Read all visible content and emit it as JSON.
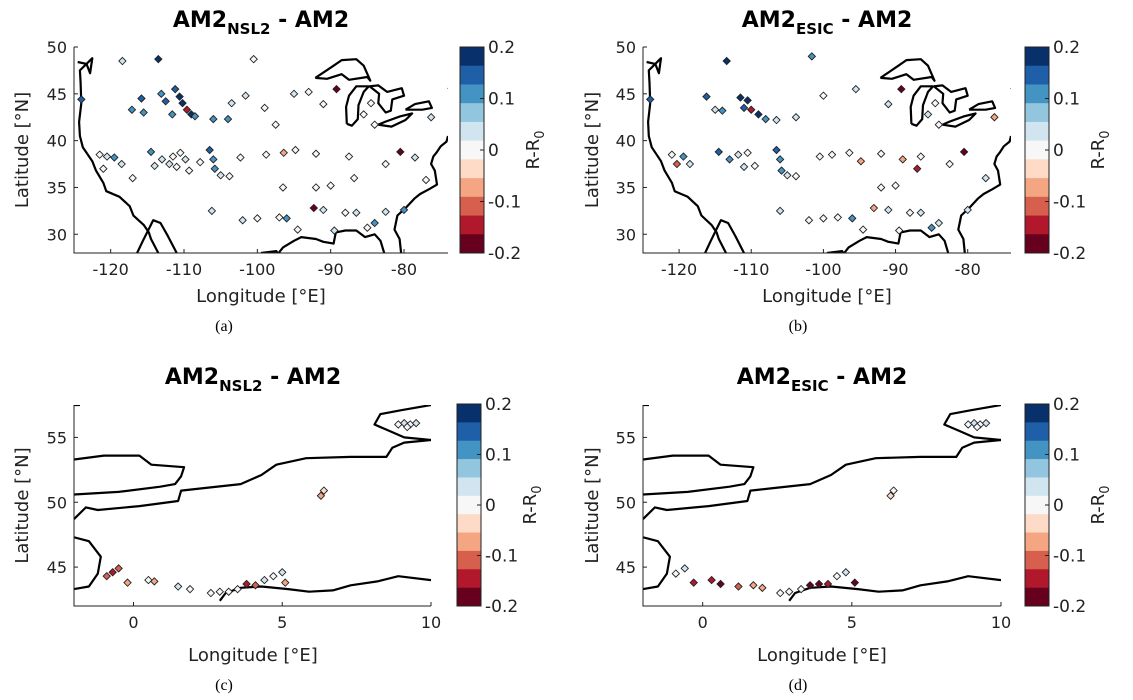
{
  "colorbar": {
    "label": "R-R",
    "label_sub": "0",
    "ticks": [
      "0.2",
      "0.1",
      "0",
      "-0.1",
      "-0.2"
    ],
    "tick_values": [
      0.2,
      0.1,
      0,
      -0.1,
      -0.2
    ],
    "range": [
      -0.2,
      0.2
    ],
    "bin_width": 0.025,
    "colors_top_to_bottom": [
      "#08306b",
      "#1e5fa8",
      "#4393c3",
      "#92c5de",
      "#d1e5f0",
      "#f7f7f7",
      "#fddbc7",
      "#f4a582",
      "#d6604d",
      "#b2182b",
      "#67001f"
    ]
  },
  "chart_data": [
    {
      "type": "scatter",
      "panel": "(a)",
      "title_main": "AM2",
      "title_sub": "NSL2",
      "title_rest": " - AM2",
      "xlabel": "Longitude [°E]",
      "ylabel": "Latitude [°N]",
      "xlim": [
        -125,
        -74
      ],
      "ylim": [
        28,
        50
      ],
      "xticks": [
        -120,
        -110,
        -100,
        -90,
        -80
      ],
      "xtick_labels": [
        "-120",
        "-110",
        "-100",
        "-90",
        "-80"
      ],
      "yticks": [
        30,
        35,
        40,
        45,
        50
      ],
      "ytick_labels": [
        "30",
        "35",
        "40",
        "45",
        "50"
      ],
      "points": [
        [
          -124.0,
          44.4,
          0.15
        ],
        [
          -118.4,
          48.5,
          0.02
        ],
        [
          -117.1,
          43.3,
          0.1
        ],
        [
          -115.8,
          44.5,
          0.15
        ],
        [
          -115.5,
          43.0,
          0.12
        ],
        [
          -113.5,
          48.7,
          0.18
        ],
        [
          -113.1,
          45.0,
          0.12
        ],
        [
          -112.5,
          44.2,
          0.15
        ],
        [
          -111.6,
          42.8,
          0.12
        ],
        [
          -111.2,
          45.5,
          0.16
        ],
        [
          -110.6,
          44.7,
          0.18
        ],
        [
          -110.2,
          44.0,
          0.2
        ],
        [
          -109.6,
          43.3,
          -0.15
        ],
        [
          -109.0,
          42.8,
          0.18
        ],
        [
          -108.5,
          42.6,
          0.12
        ],
        [
          -106.0,
          42.3,
          0.1
        ],
        [
          -104.0,
          42.3,
          0.12
        ],
        [
          -103.5,
          44.0,
          0.02
        ],
        [
          -101.6,
          44.8,
          0.02
        ],
        [
          -100.5,
          48.7,
          0.01
        ],
        [
          -99.0,
          43.5,
          0.0
        ],
        [
          -97.5,
          41.7,
          0.01
        ],
        [
          -95.0,
          45.0,
          0.02
        ],
        [
          -93.0,
          45.2,
          0.0
        ],
        [
          -91.0,
          43.9,
          0.01
        ],
        [
          -89.2,
          45.5,
          -0.18
        ],
        [
          -84.5,
          44.0,
          0.0
        ],
        [
          -85.5,
          42.8,
          0.0
        ],
        [
          -84.0,
          41.7,
          0.01
        ],
        [
          -76.3,
          42.5,
          0.02
        ],
        [
          -121.5,
          38.5,
          0.01
        ],
        [
          -120.5,
          38.3,
          0.02
        ],
        [
          -119.5,
          38.2,
          0.12
        ],
        [
          -121.0,
          37.0,
          0.0
        ],
        [
          -118.5,
          37.5,
          0.02
        ],
        [
          -117.0,
          36.0,
          0.01
        ],
        [
          -114.5,
          38.8,
          0.12
        ],
        [
          -114.0,
          37.3,
          0.02
        ],
        [
          -113.0,
          38.0,
          0.02
        ],
        [
          -112.0,
          37.5,
          0.02
        ],
        [
          -111.5,
          38.3,
          0.0
        ],
        [
          -111.0,
          37.2,
          0.01
        ],
        [
          -110.5,
          38.7,
          0.0
        ],
        [
          -109.8,
          38.0,
          0.02
        ],
        [
          -109.3,
          36.8,
          0.01
        ],
        [
          -107.8,
          37.7,
          0.0
        ],
        [
          -106.5,
          39.0,
          0.15
        ],
        [
          -106.0,
          38.0,
          0.12
        ],
        [
          -105.8,
          37.0,
          0.12
        ],
        [
          -105.0,
          36.3,
          0.02
        ],
        [
          -106.2,
          32.5,
          0.05
        ],
        [
          -103.8,
          36.2,
          0.01
        ],
        [
          -102.3,
          38.2,
          0.0
        ],
        [
          -98.8,
          38.5,
          0.01
        ],
        [
          -96.4,
          38.7,
          -0.08
        ],
        [
          -94.8,
          39.0,
          0.01
        ],
        [
          -92.0,
          38.6,
          0.01
        ],
        [
          -87.5,
          38.3,
          0.0
        ],
        [
          -86.8,
          36.0,
          0.0
        ],
        [
          -82.5,
          37.5,
          0.0
        ],
        [
          -80.5,
          38.8,
          -0.18
        ],
        [
          -78.5,
          38.2,
          0.02
        ],
        [
          -77.0,
          35.8,
          0.0
        ],
        [
          -102.0,
          31.5,
          0.02
        ],
        [
          -100.0,
          31.7,
          0.01
        ],
        [
          -97.0,
          31.8,
          0.0
        ],
        [
          -96.0,
          31.7,
          0.1
        ],
        [
          -94.5,
          30.5,
          0.0
        ],
        [
          -92.3,
          32.8,
          -0.18
        ],
        [
          -91.0,
          32.6,
          0.02
        ],
        [
          -89.5,
          30.4,
          0.02
        ],
        [
          -88.0,
          32.3,
          0.01
        ],
        [
          -86.5,
          32.3,
          0.02
        ],
        [
          -85.0,
          30.7,
          0.01
        ],
        [
          -84.0,
          31.2,
          0.1
        ],
        [
          -82.5,
          32.4,
          0.02
        ],
        [
          -80.0,
          32.6,
          0.12
        ],
        [
          -92.0,
          35.0,
          0.0
        ],
        [
          -90.0,
          35.2,
          0.01
        ],
        [
          -96.5,
          35.0,
          0.01
        ]
      ]
    },
    {
      "type": "scatter",
      "panel": "(b)",
      "title_main": "AM2",
      "title_sub": "ESIC",
      "title_rest": " - AM2",
      "xlabel": "Longitude [°E]",
      "ylabel": "Latitude [°N]",
      "xlim": [
        -125,
        -74
      ],
      "ylim": [
        28,
        50
      ],
      "xticks": [
        -120,
        -110,
        -100,
        -90,
        -80
      ],
      "xtick_labels": [
        "-120",
        "-110",
        "-100",
        "-90",
        "-80"
      ],
      "yticks": [
        30,
        35,
        40,
        45,
        50
      ],
      "ytick_labels": [
        "30",
        "35",
        "40",
        "45",
        "50"
      ],
      "points": [
        [
          -124.0,
          44.4,
          0.15
        ],
        [
          -116.2,
          44.7,
          0.15
        ],
        [
          -113.4,
          48.5,
          0.2
        ],
        [
          -115.0,
          43.3,
          0.02
        ],
        [
          -114.0,
          43.2,
          0.1
        ],
        [
          -111.5,
          44.6,
          0.18
        ],
        [
          -111.0,
          43.5,
          0.15
        ],
        [
          -110.5,
          44.3,
          0.2
        ],
        [
          -110.0,
          43.3,
          -0.15
        ],
        [
          -109.0,
          42.8,
          0.18
        ],
        [
          -108.0,
          42.3,
          0.12
        ],
        [
          -106.5,
          42.2,
          0.02
        ],
        [
          -103.8,
          42.5,
          0.02
        ],
        [
          -101.6,
          49.0,
          0.12
        ],
        [
          -100.0,
          44.8,
          0.01
        ],
        [
          -95.5,
          45.5,
          0.02
        ],
        [
          -91.0,
          43.9,
          0.02
        ],
        [
          -89.2,
          45.5,
          -0.18
        ],
        [
          -84.5,
          44.0,
          0.0
        ],
        [
          -85.5,
          42.8,
          0.02
        ],
        [
          -84.0,
          41.7,
          0.01
        ],
        [
          -76.3,
          42.5,
          -0.08
        ],
        [
          -121.0,
          38.5,
          0.01
        ],
        [
          -120.3,
          37.5,
          -0.1
        ],
        [
          -119.4,
          38.3,
          0.12
        ],
        [
          -118.5,
          37.5,
          0.02
        ],
        [
          -114.5,
          38.8,
          0.15
        ],
        [
          -113.0,
          38.0,
          0.12
        ],
        [
          -111.8,
          38.5,
          0.02
        ],
        [
          -111.0,
          37.2,
          0.02
        ],
        [
          -110.5,
          38.7,
          0.0
        ],
        [
          -109.5,
          37.3,
          0.01
        ],
        [
          -106.5,
          39.0,
          0.15
        ],
        [
          -106.0,
          38.0,
          0.12
        ],
        [
          -105.8,
          36.8,
          0.12
        ],
        [
          -105.0,
          36.3,
          0.02
        ],
        [
          -103.8,
          36.2,
          0.01
        ],
        [
          -100.5,
          38.3,
          0.0
        ],
        [
          -98.8,
          38.5,
          0.01
        ],
        [
          -96.4,
          38.7,
          0.01
        ],
        [
          -94.8,
          37.8,
          -0.08
        ],
        [
          -92.0,
          38.6,
          0.01
        ],
        [
          -89.0,
          38.0,
          -0.08
        ],
        [
          -87.0,
          37.0,
          -0.15
        ],
        [
          -86.5,
          38.3,
          0.0
        ],
        [
          -82.5,
          37.5,
          0.0
        ],
        [
          -80.5,
          38.8,
          -0.18
        ],
        [
          -77.5,
          36.0,
          0.02
        ],
        [
          -106.0,
          32.5,
          0.02
        ],
        [
          -102.0,
          31.5,
          0.01
        ],
        [
          -100.0,
          31.7,
          0.01
        ],
        [
          -98.0,
          31.8,
          0.0
        ],
        [
          -96.0,
          31.7,
          0.1
        ],
        [
          -94.5,
          30.5,
          0.0
        ],
        [
          -93.0,
          32.8,
          -0.08
        ],
        [
          -91.0,
          32.6,
          0.02
        ],
        [
          -89.5,
          30.4,
          0.0
        ],
        [
          -88.0,
          32.3,
          0.01
        ],
        [
          -86.5,
          32.3,
          0.02
        ],
        [
          -85.0,
          30.7,
          0.12
        ],
        [
          -84.0,
          31.2,
          0.02
        ],
        [
          -80.0,
          32.6,
          0.02
        ],
        [
          -92.0,
          35.0,
          0.0
        ],
        [
          -90.0,
          35.2,
          0.01
        ]
      ]
    },
    {
      "type": "scatter",
      "panel": "(c)",
      "title_main": "AM2",
      "title_sub": "NSL2",
      "title_rest": " - AM2",
      "xlabel": "Longitude [°E]",
      "ylabel": "Latitude [°N]",
      "xlim": [
        -2,
        10
      ],
      "ylim": [
        42,
        57.5
      ],
      "xticks": [
        0,
        5,
        10
      ],
      "xtick_labels": [
        "0",
        "5",
        "10"
      ],
      "yticks": [
        45,
        50,
        55
      ],
      "ytick_labels": [
        "45",
        "50",
        "55"
      ],
      "points": [
        [
          8.9,
          56.0,
          0.01
        ],
        [
          9.1,
          56.1,
          0.02
        ],
        [
          9.3,
          56.0,
          0.0
        ],
        [
          9.5,
          56.1,
          0.02
        ],
        [
          9.2,
          55.8,
          0.0
        ],
        [
          6.4,
          50.9,
          -0.03
        ],
        [
          6.3,
          50.5,
          -0.06
        ],
        [
          -0.9,
          44.3,
          -0.1
        ],
        [
          -0.7,
          44.6,
          -0.15
        ],
        [
          -0.5,
          44.9,
          -0.12
        ],
        [
          -0.2,
          43.8,
          -0.08
        ],
        [
          0.5,
          44.0,
          0.01
        ],
        [
          0.7,
          43.9,
          -0.06
        ],
        [
          1.5,
          43.5,
          0.02
        ],
        [
          1.9,
          43.3,
          0.01
        ],
        [
          2.6,
          43.0,
          0.0
        ],
        [
          2.9,
          43.1,
          0.01
        ],
        [
          3.2,
          43.1,
          0.0
        ],
        [
          3.5,
          43.3,
          0.01
        ],
        [
          3.8,
          43.7,
          -0.15
        ],
        [
          4.1,
          43.6,
          -0.12
        ],
        [
          4.4,
          44.0,
          0.02
        ],
        [
          4.7,
          44.3,
          0.01
        ],
        [
          5.0,
          44.6,
          0.02
        ],
        [
          5.1,
          43.8,
          -0.08
        ]
      ]
    },
    {
      "type": "scatter",
      "panel": "(d)",
      "title_main": "AM2",
      "title_sub": "ESIC",
      "title_rest": " - AM2",
      "xlabel": "Longitude [°E]",
      "ylabel": "Latitude [°N]",
      "xlim": [
        -2,
        10
      ],
      "ylim": [
        42,
        57.5
      ],
      "xticks": [
        0,
        5,
        10
      ],
      "xtick_labels": [
        "0",
        "5",
        "10"
      ],
      "yticks": [
        45,
        50,
        55
      ],
      "ytick_labels": [
        "45",
        "50",
        "55"
      ],
      "points": [
        [
          8.9,
          56.0,
          0.01
        ],
        [
          9.1,
          56.1,
          0.02
        ],
        [
          9.3,
          56.0,
          0.0
        ],
        [
          9.5,
          56.1,
          0.02
        ],
        [
          9.2,
          55.8,
          0.01
        ],
        [
          6.4,
          50.9,
          0.0
        ],
        [
          6.3,
          50.5,
          -0.04
        ],
        [
          -0.9,
          44.5,
          0.0
        ],
        [
          -0.6,
          44.9,
          0.02
        ],
        [
          -0.3,
          43.8,
          -0.15
        ],
        [
          0.3,
          44.0,
          -0.15
        ],
        [
          0.6,
          43.7,
          -0.18
        ],
        [
          1.2,
          43.5,
          -0.12
        ],
        [
          1.7,
          43.6,
          -0.08
        ],
        [
          2.0,
          43.4,
          -0.08
        ],
        [
          2.6,
          43.0,
          0.0
        ],
        [
          2.9,
          43.1,
          0.01
        ],
        [
          3.3,
          43.3,
          0.0
        ],
        [
          3.6,
          43.6,
          -0.2
        ],
        [
          3.9,
          43.7,
          -0.18
        ],
        [
          4.2,
          43.7,
          -0.15
        ],
        [
          4.5,
          44.3,
          0.01
        ],
        [
          4.8,
          44.6,
          0.02
        ],
        [
          5.1,
          43.8,
          -0.18
        ]
      ]
    }
  ]
}
